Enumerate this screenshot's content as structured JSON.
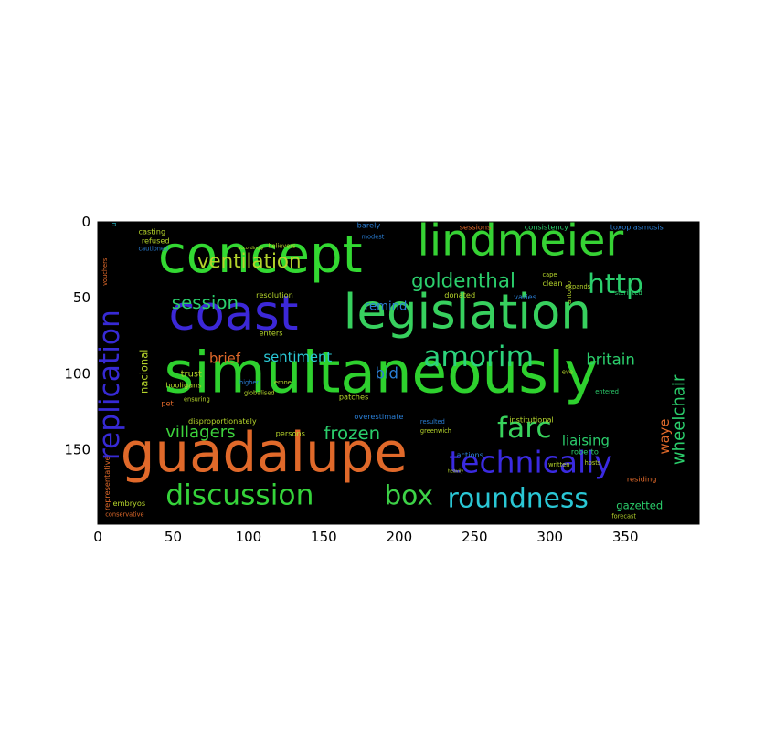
{
  "chart_data": {
    "type": "wordcloud",
    "title": "",
    "xlabel": "",
    "ylabel": "",
    "xlim": [
      0,
      399
    ],
    "ylim": [
      199,
      0
    ],
    "x_ticks": [
      "0",
      "50",
      "100",
      "150",
      "200",
      "250",
      "300",
      "350"
    ],
    "y_ticks": [
      "0",
      "50",
      "100",
      "150"
    ],
    "background": "#000000",
    "words": [
      {
        "text": "simultaneously",
        "x": 44,
        "y": 112,
        "size": 38,
        "color": "#2ed12e"
      },
      {
        "text": "guadalupe",
        "x": 15,
        "y": 164,
        "size": 36,
        "color": "#e0692a"
      },
      {
        "text": "concept",
        "x": 40,
        "y": 33,
        "size": 34,
        "color": "#33d932"
      },
      {
        "text": "coast",
        "x": 47,
        "y": 71,
        "size": 32,
        "color": "#3c28d8"
      },
      {
        "text": "legislation",
        "x": 163,
        "y": 70,
        "size": 32,
        "color": "#37d05e"
      },
      {
        "text": "lindmeier",
        "x": 212,
        "y": 22,
        "size": 29,
        "color": "#36d234"
      },
      {
        "text": "technically",
        "x": 233,
        "y": 165,
        "size": 20,
        "color": "#3a2ae0"
      },
      {
        "text": "replication",
        "x": 14,
        "y": 157,
        "size": 19,
        "color": "#372ad5"
      },
      {
        "text": "amorim",
        "x": 216,
        "y": 95,
        "size": 19,
        "color": "#2cd37c"
      },
      {
        "text": "discussion",
        "x": 45,
        "y": 186,
        "size": 19,
        "color": "#35d33a"
      },
      {
        "text": "farc",
        "x": 265,
        "y": 142,
        "size": 19,
        "color": "#38d25c"
      },
      {
        "text": "box",
        "x": 190,
        "y": 186,
        "size": 18,
        "color": "#3dd247"
      },
      {
        "text": "roundness",
        "x": 232,
        "y": 188,
        "size": 18,
        "color": "#2ac7d5"
      },
      {
        "text": "http",
        "x": 325,
        "y": 47,
        "size": 18,
        "color": "#2bce6c"
      },
      {
        "text": "ventilation",
        "x": 66,
        "y": 30,
        "size": 13,
        "color": "#b4d32b"
      },
      {
        "text": "goldenthal",
        "x": 208,
        "y": 43,
        "size": 13,
        "color": "#2bce6c"
      },
      {
        "text": "session",
        "x": 49,
        "y": 57,
        "size": 12,
        "color": "#2bce6c"
      },
      {
        "text": "frozen",
        "x": 150,
        "y": 143,
        "size": 12,
        "color": "#2bce6c"
      },
      {
        "text": "villagers",
        "x": 45,
        "y": 142,
        "size": 11,
        "color": "#3cd13c"
      },
      {
        "text": "wheelchair",
        "x": 389,
        "y": 160,
        "size": 11,
        "color": "#2bce6c"
      },
      {
        "text": "britain",
        "x": 324,
        "y": 94,
        "size": 10,
        "color": "#2bce6c"
      },
      {
        "text": "sentiment",
        "x": 110,
        "y": 92,
        "size": 9,
        "color": "#2ac7d5"
      },
      {
        "text": "bid",
        "x": 184,
        "y": 103,
        "size": 10,
        "color": "#2a7ed5"
      },
      {
        "text": "liaising",
        "x": 308,
        "y": 147,
        "size": 9,
        "color": "#2bce6c"
      },
      {
        "text": "remind",
        "x": 177,
        "y": 58,
        "size": 8,
        "color": "#2a7ed5"
      },
      {
        "text": "brief",
        "x": 74,
        "y": 93,
        "size": 9,
        "color": "#e0692a"
      },
      {
        "text": "waye",
        "x": 379,
        "y": 153,
        "size": 9,
        "color": "#e0692a"
      },
      {
        "text": "nacional",
        "x": 33,
        "y": 113,
        "size": 7,
        "color": "#b4d32b"
      },
      {
        "text": "trust",
        "x": 55,
        "y": 102,
        "size": 6,
        "color": "#b4d32b"
      },
      {
        "text": "pet",
        "x": 42,
        "y": 121,
        "size": 5,
        "color": "#e0692a"
      },
      {
        "text": "gazetted",
        "x": 344,
        "y": 189,
        "size": 7,
        "color": "#2bce6c"
      },
      {
        "text": "casting",
        "x": 27,
        "y": 8,
        "size": 5,
        "color": "#b4d32b"
      },
      {
        "text": "refused",
        "x": 29,
        "y": 14,
        "size": 5,
        "color": "#b4d32b"
      },
      {
        "text": "cautioned",
        "x": 27,
        "y": 19,
        "size": 4,
        "color": "#2a7ed5"
      },
      {
        "text": "upgrades",
        "x": 12,
        "y": 3,
        "size": 4,
        "color": "#2ac7d5"
      },
      {
        "text": "vouchers",
        "x": 6,
        "y": 42,
        "size": 4,
        "color": "#e0692a"
      },
      {
        "text": "barely",
        "x": 172,
        "y": 4,
        "size": 5,
        "color": "#2a7ed5"
      },
      {
        "text": "modest",
        "x": 175,
        "y": 11,
        "size": 4,
        "color": "#2a7ed5"
      },
      {
        "text": "sessions",
        "x": 240,
        "y": 5,
        "size": 5,
        "color": "#e0692a"
      },
      {
        "text": "consistency",
        "x": 283,
        "y": 5,
        "size": 5,
        "color": "#2bce6c"
      },
      {
        "text": "toxoplasmosis",
        "x": 340,
        "y": 5,
        "size": 5,
        "color": "#2a7ed5"
      },
      {
        "text": "resolution",
        "x": 105,
        "y": 50,
        "size": 5,
        "color": "#b4d32b"
      },
      {
        "text": "enters",
        "x": 107,
        "y": 75,
        "size": 5,
        "color": "#b4d32b"
      },
      {
        "text": "hooligans",
        "x": 45,
        "y": 109,
        "size": 5,
        "color": "#b4d32b"
      },
      {
        "text": "ensuring",
        "x": 57,
        "y": 118,
        "size": 4,
        "color": "#b4d32b"
      },
      {
        "text": "disproportionately",
        "x": 60,
        "y": 133,
        "size": 5,
        "color": "#b4d32b"
      },
      {
        "text": "globalised",
        "x": 97,
        "y": 114,
        "size": 4,
        "color": "#b4d32b"
      },
      {
        "text": "persons",
        "x": 118,
        "y": 141,
        "size": 5,
        "color": "#b4d32b"
      },
      {
        "text": "patches",
        "x": 160,
        "y": 117,
        "size": 5,
        "color": "#b4d32b"
      },
      {
        "text": "donated",
        "x": 230,
        "y": 50,
        "size": 5,
        "color": "#b4d32b"
      },
      {
        "text": "varies",
        "x": 276,
        "y": 51,
        "size": 5,
        "color": "#2a7ed5"
      },
      {
        "text": "clean",
        "x": 295,
        "y": 42,
        "size": 5,
        "color": "#b4d32b"
      },
      {
        "text": "cape",
        "x": 295,
        "y": 36,
        "size": 4,
        "color": "#b4d32b"
      },
      {
        "text": "expands",
        "x": 310,
        "y": 44,
        "size": 4,
        "color": "#b4d32b"
      },
      {
        "text": "sterilized",
        "x": 343,
        "y": 48,
        "size": 4,
        "color": "#2bce6c"
      },
      {
        "text": "institutional",
        "x": 273,
        "y": 132,
        "size": 5,
        "color": "#b4d32b"
      },
      {
        "text": "resulted",
        "x": 214,
        "y": 133,
        "size": 4,
        "color": "#2a7ed5"
      },
      {
        "text": "greenwich",
        "x": 214,
        "y": 139,
        "size": 4,
        "color": "#b4d32b"
      },
      {
        "text": "actions",
        "x": 238,
        "y": 155,
        "size": 5,
        "color": "#2a7ed5"
      },
      {
        "text": "roberto",
        "x": 314,
        "y": 153,
        "size": 5,
        "color": "#2bce6c"
      },
      {
        "text": "written",
        "x": 299,
        "y": 161,
        "size": 4,
        "color": "#b4d32b"
      },
      {
        "text": "residing",
        "x": 351,
        "y": 171,
        "size": 5,
        "color": "#e0692a"
      },
      {
        "text": "forecast",
        "x": 341,
        "y": 195,
        "size": 4,
        "color": "#b4d32b"
      },
      {
        "text": "embryos",
        "x": 10,
        "y": 187,
        "size": 5,
        "color": "#b4d32b"
      },
      {
        "text": "conservative",
        "x": 5,
        "y": 194,
        "size": 4,
        "color": "#e0692a"
      },
      {
        "text": "representative",
        "x": 8,
        "y": 190,
        "size": 5,
        "color": "#e0692a"
      },
      {
        "text": "believers",
        "x": 113,
        "y": 17,
        "size": 4,
        "color": "#b4d32b"
      },
      {
        "text": "accordingly",
        "x": 93,
        "y": 18,
        "size": 3,
        "color": "#b4d32b"
      },
      {
        "text": "eve",
        "x": 308,
        "y": 100,
        "size": 4,
        "color": "#b4d32b"
      },
      {
        "text": "entered",
        "x": 330,
        "y": 113,
        "size": 4,
        "color": "#2bce6c"
      },
      {
        "text": "overestimate",
        "x": 170,
        "y": 130,
        "size": 5,
        "color": "#2a7ed5"
      },
      {
        "text": "higher",
        "x": 94,
        "y": 107,
        "size": 4,
        "color": "#2a7ed5"
      },
      {
        "text": "erone",
        "x": 117,
        "y": 107,
        "size": 4,
        "color": "#b4d32b"
      },
      {
        "text": "antonio",
        "x": 314,
        "y": 54,
        "size": 4,
        "color": "#b4d32b"
      },
      {
        "text": "heavily",
        "x": 232,
        "y": 165,
        "size": 3,
        "color": "#b4d32b"
      },
      {
        "text": "hosts",
        "x": 323,
        "y": 160,
        "size": 4,
        "color": "#b4d32b"
      }
    ]
  }
}
